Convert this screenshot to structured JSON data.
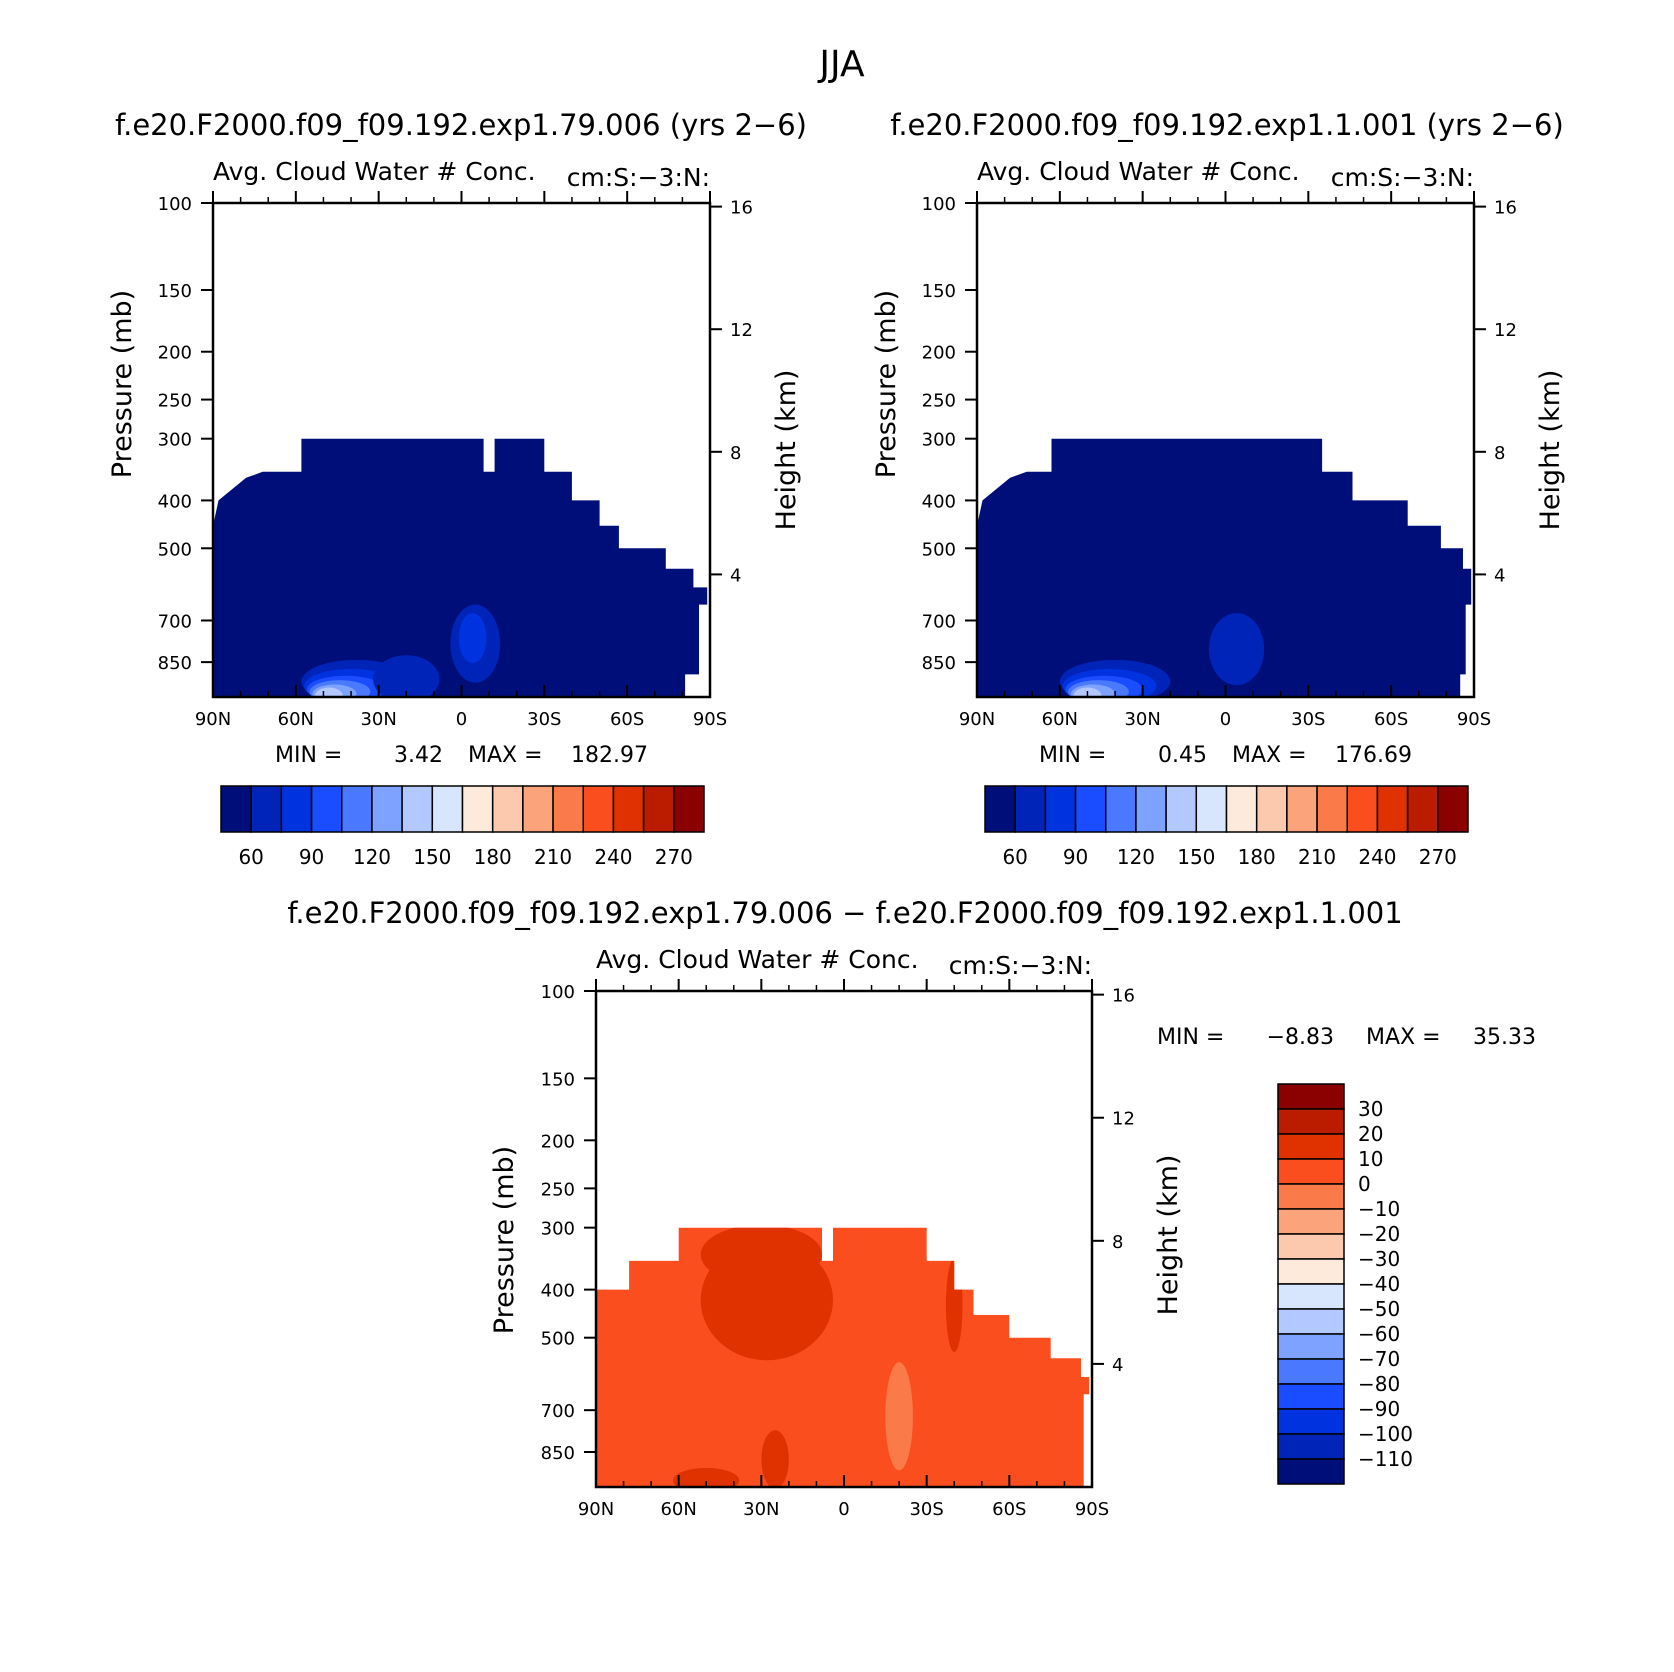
{
  "figure": {
    "title": "JJA"
  },
  "colors": {
    "sequential": [
      "#000e7a",
      "#0024b8",
      "#0033e0",
      "#1a4dff",
      "#4a78ff",
      "#7da2ff",
      "#b2c8ff",
      "#d7e6fd",
      "#fdeadb",
      "#fcc9ae",
      "#fba47c",
      "#fb7a4a",
      "#fb4e1f",
      "#e03100",
      "#bb1c00",
      "#8b0000"
    ],
    "difference": [
      "#000e7a",
      "#0024b8",
      "#0033e0",
      "#1a4dff",
      "#4a78ff",
      "#7da2ff",
      "#b2c8ff",
      "#d7e6fd",
      "#fdeadb",
      "#fcc9ae",
      "#fba47c",
      "#fb7a4a",
      "#fb4e1f",
      "#e03100",
      "#bb1c00",
      "#8b0000"
    ]
  },
  "chart_data": [
    {
      "type": "heatmap",
      "panel": "case1",
      "title": "f.e20.F2000.f09_f09.192.exp1.79.006 (yrs 2−6)",
      "subtitle_left": "Avg. Cloud Water # Conc.",
      "subtitle_right": "cm:S:−3:N:",
      "ylabel": "Pressure (mb)",
      "ylabel_right": "Height (km)",
      "xticks": [
        "90N",
        "60N",
        "30N",
        "0",
        "30S",
        "60S",
        "90S"
      ],
      "xtick_values": [
        90,
        60,
        30,
        0,
        -30,
        -60,
        -90
      ],
      "yticks": [
        "100",
        "150",
        "200",
        "250",
        "300",
        "400",
        "500",
        "700",
        "850"
      ],
      "ytick_values": [
        100,
        150,
        200,
        250,
        300,
        400,
        500,
        700,
        850
      ],
      "yticks_right": [
        "16",
        "12",
        "8",
        "4"
      ],
      "ytick_right_values": [
        16,
        12,
        8,
        4
      ],
      "xlim": [
        90,
        -90
      ],
      "ylim": [
        100,
        1000
      ],
      "ylog": true,
      "stats": {
        "min_label": "MIN =",
        "min": "3.42",
        "max_label": "MAX =",
        "max": "182.97"
      },
      "colorbar": {
        "labels": [
          "60",
          "90",
          "120",
          "150",
          "180",
          "210",
          "240",
          "270"
        ]
      },
      "dominant_level": 0,
      "boundary": [
        [
          90,
          450
        ],
        [
          88,
          400
        ],
        [
          78,
          360
        ],
        [
          72,
          350
        ],
        [
          58,
          350
        ],
        [
          58,
          300
        ],
        [
          -8,
          300
        ],
        [
          -8,
          350
        ],
        [
          -12,
          350
        ],
        [
          -12,
          300
        ],
        [
          -30,
          300
        ],
        [
          -30,
          350
        ],
        [
          -40,
          350
        ],
        [
          -40,
          400
        ],
        [
          -50,
          400
        ],
        [
          -50,
          450
        ],
        [
          -57,
          450
        ],
        [
          -57,
          500
        ],
        [
          -74,
          500
        ],
        [
          -74,
          550
        ],
        [
          -84,
          550
        ],
        [
          -84,
          600
        ],
        [
          -89,
          600
        ],
        [
          -89,
          650
        ],
        [
          -86,
          650
        ],
        [
          -86,
          900
        ],
        [
          -81,
          900
        ],
        [
          -81,
          1000
        ],
        [
          90,
          1000
        ]
      ],
      "features": [
        {
          "cx": 38,
          "cy": 930,
          "rx": 20,
          "ry": 160,
          "level": 1
        },
        {
          "cx": 40,
          "cy": 950,
          "rx": 17,
          "ry": 120,
          "level": 2
        },
        {
          "cx": 42,
          "cy": 965,
          "rx": 14,
          "ry": 90,
          "level": 3
        },
        {
          "cx": 44,
          "cy": 975,
          "rx": 11,
          "ry": 65,
          "level": 4
        },
        {
          "cx": 46,
          "cy": 985,
          "rx": 8,
          "ry": 45,
          "level": 5
        },
        {
          "cx": 48,
          "cy": 992,
          "rx": 5,
          "ry": 28,
          "level": 6
        },
        {
          "cx": 20,
          "cy": 920,
          "rx": 12,
          "ry": 90,
          "level": 1
        },
        {
          "cx": -5,
          "cy": 780,
          "rx": 9,
          "ry": 130,
          "level": 1
        },
        {
          "cx": -4,
          "cy": 760,
          "rx": 5,
          "ry": 70,
          "level": 2
        }
      ]
    },
    {
      "type": "heatmap",
      "panel": "case2",
      "title": "f.e20.F2000.f09_f09.192.exp1.1.001 (yrs 2−6)",
      "subtitle_left": "Avg. Cloud Water # Conc.",
      "subtitle_right": "cm:S:−3:N:",
      "ylabel": "Pressure (mb)",
      "ylabel_right": "Height (km)",
      "xticks": [
        "90N",
        "60N",
        "30N",
        "0",
        "30S",
        "60S",
        "90S"
      ],
      "xtick_values": [
        90,
        60,
        30,
        0,
        -30,
        -60,
        -90
      ],
      "yticks": [
        "100",
        "150",
        "200",
        "250",
        "300",
        "400",
        "500",
        "700",
        "850"
      ],
      "ytick_values": [
        100,
        150,
        200,
        250,
        300,
        400,
        500,
        700,
        850
      ],
      "yticks_right": [
        "16",
        "12",
        "8",
        "4"
      ],
      "ytick_right_values": [
        16,
        12,
        8,
        4
      ],
      "xlim": [
        90,
        -90
      ],
      "ylim": [
        100,
        1000
      ],
      "ylog": true,
      "stats": {
        "min_label": "MIN =",
        "min": "0.45",
        "max_label": "MAX =",
        "max": "176.69"
      },
      "colorbar": {
        "labels": [
          "60",
          "90",
          "120",
          "150",
          "180",
          "210",
          "240",
          "270"
        ]
      },
      "dominant_level": 0,
      "boundary": [
        [
          90,
          450
        ],
        [
          88,
          400
        ],
        [
          78,
          360
        ],
        [
          72,
          350
        ],
        [
          63,
          350
        ],
        [
          63,
          300
        ],
        [
          -35,
          300
        ],
        [
          -35,
          350
        ],
        [
          -46,
          350
        ],
        [
          -46,
          400
        ],
        [
          -66,
          400
        ],
        [
          -66,
          450
        ],
        [
          -78,
          450
        ],
        [
          -78,
          500
        ],
        [
          -86,
          500
        ],
        [
          -86,
          550
        ],
        [
          -89,
          550
        ],
        [
          -89,
          650
        ],
        [
          -87,
          650
        ],
        [
          -87,
          900
        ],
        [
          -85,
          900
        ],
        [
          -85,
          1000
        ],
        [
          90,
          1000
        ]
      ],
      "features": [
        {
          "cx": 40,
          "cy": 930,
          "rx": 20,
          "ry": 160,
          "level": 1
        },
        {
          "cx": 42,
          "cy": 950,
          "rx": 17,
          "ry": 120,
          "level": 2
        },
        {
          "cx": 44,
          "cy": 965,
          "rx": 14,
          "ry": 90,
          "level": 3
        },
        {
          "cx": 46,
          "cy": 975,
          "rx": 11,
          "ry": 65,
          "level": 4
        },
        {
          "cx": 48,
          "cy": 985,
          "rx": 8,
          "ry": 45,
          "level": 5
        },
        {
          "cx": 50,
          "cy": 992,
          "rx": 5,
          "ry": 28,
          "level": 6
        },
        {
          "cx": -4,
          "cy": 800,
          "rx": 10,
          "ry": 120,
          "level": 1
        }
      ]
    },
    {
      "type": "heatmap",
      "panel": "difference",
      "title": "f.e20.F2000.f09_f09.192.exp1.79.006 − f.e20.F2000.f09_f09.192.exp1.1.001",
      "subtitle_left": "Avg. Cloud Water # Conc.",
      "subtitle_right": "cm:S:−3:N:",
      "ylabel": "Pressure (mb)",
      "ylabel_right": "Height (km)",
      "xticks": [
        "90N",
        "60N",
        "30N",
        "0",
        "30S",
        "60S",
        "90S"
      ],
      "xtick_values": [
        90,
        60,
        30,
        0,
        -30,
        -60,
        -90
      ],
      "yticks": [
        "100",
        "150",
        "200",
        "250",
        "300",
        "400",
        "500",
        "700",
        "850"
      ],
      "ytick_values": [
        100,
        150,
        200,
        250,
        300,
        400,
        500,
        700,
        850
      ],
      "yticks_right": [
        "16",
        "12",
        "8",
        "4"
      ],
      "ytick_right_values": [
        16,
        12,
        8,
        4
      ],
      "xlim": [
        90,
        -90
      ],
      "ylim": [
        100,
        1000
      ],
      "ylog": true,
      "stats": {
        "min_label": "MIN =",
        "min": "−8.83",
        "max_label": "MAX =",
        "max": "35.33"
      },
      "colorbar": {
        "labels": [
          "30",
          "20",
          "10",
          "0",
          "−10",
          "−20",
          "−30",
          "−40",
          "−50",
          "−60",
          "−70",
          "−80",
          "−90",
          "−100",
          "−110"
        ]
      },
      "dominant_level": 12,
      "boundary": [
        [
          90,
          400
        ],
        [
          78,
          400
        ],
        [
          78,
          350
        ],
        [
          60,
          350
        ],
        [
          60,
          300
        ],
        [
          8,
          300
        ],
        [
          8,
          350
        ],
        [
          4,
          350
        ],
        [
          4,
          300
        ],
        [
          -30,
          300
        ],
        [
          -30,
          350
        ],
        [
          -40,
          350
        ],
        [
          -40,
          400
        ],
        [
          -47,
          400
        ],
        [
          -47,
          450
        ],
        [
          -60,
          450
        ],
        [
          -60,
          500
        ],
        [
          -75,
          500
        ],
        [
          -75,
          550
        ],
        [
          -86,
          550
        ],
        [
          -86,
          600
        ],
        [
          -89,
          600
        ],
        [
          -89,
          650
        ],
        [
          -87,
          650
        ],
        [
          -87,
          1000
        ],
        [
          90,
          1000
        ]
      ],
      "features": [
        {
          "cx": 28,
          "cy": 420,
          "rx": 24,
          "ry": 120,
          "level": 13
        },
        {
          "cx": 30,
          "cy": 340,
          "rx": 22,
          "ry": 40,
          "level": 13
        },
        {
          "cx": -20,
          "cy": 720,
          "rx": 5,
          "ry": 180,
          "level": 11
        },
        {
          "cx": -40,
          "cy": 430,
          "rx": 3,
          "ry": 90,
          "level": 13
        },
        {
          "cx": 50,
          "cy": 970,
          "rx": 12,
          "ry": 40,
          "level": 13
        },
        {
          "cx": 25,
          "cy": 880,
          "rx": 5,
          "ry": 100,
          "level": 13
        }
      ]
    }
  ]
}
